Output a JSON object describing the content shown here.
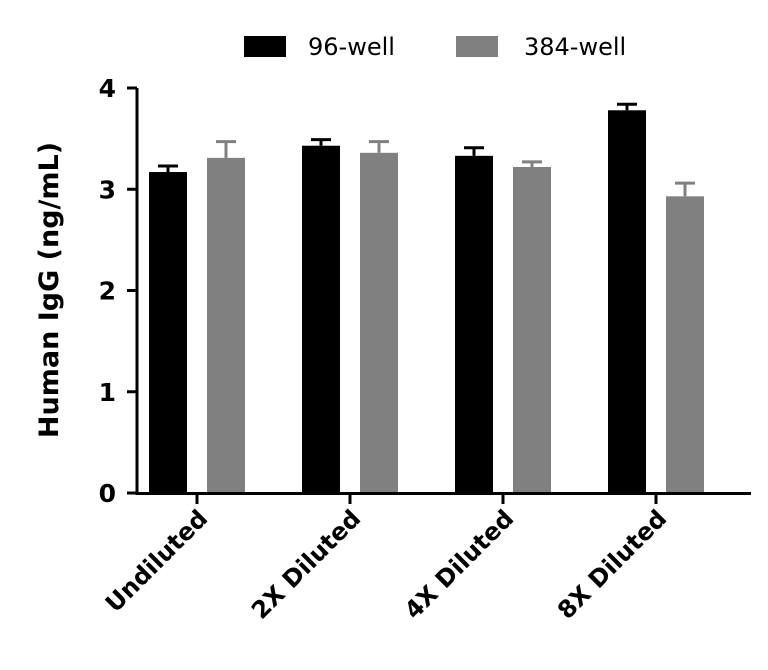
{
  "chart_data": {
    "type": "bar",
    "title": "",
    "xlabel": "",
    "ylabel": "Human IgG (ng/mL)",
    "ylim": [
      0,
      4
    ],
    "yticks": [
      0,
      1,
      2,
      3,
      4
    ],
    "categories": [
      "Undiluted",
      "2X Diluted",
      "4X Diluted",
      "8X Diluted"
    ],
    "series": [
      {
        "name": "96-well",
        "color": "#000000",
        "values": [
          3.17,
          3.43,
          3.33,
          3.78
        ],
        "errors": [
          0.06,
          0.06,
          0.08,
          0.06
        ]
      },
      {
        "name": "384-well",
        "color": "#808080",
        "values": [
          3.31,
          3.36,
          3.22,
          2.93
        ],
        "errors": [
          0.16,
          0.11,
          0.05,
          0.13
        ]
      }
    ],
    "legend_position": "top-center",
    "error_bars": "upper"
  }
}
